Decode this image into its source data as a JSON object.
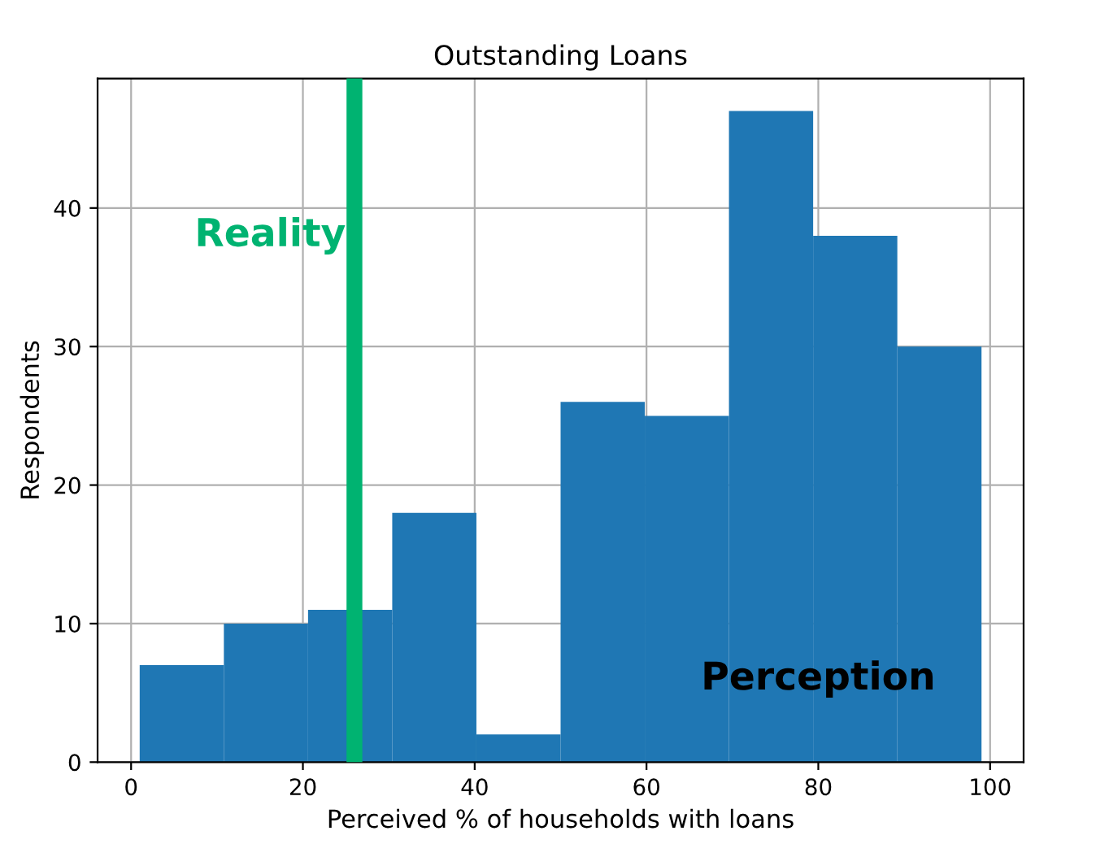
{
  "chart_data": {
    "type": "histogram",
    "title": "Outstanding Loans",
    "xlabel": "Perceived % of households with loans",
    "ylabel": "Respondents",
    "bins": [
      1,
      10.8,
      20.6,
      30.4,
      40.2,
      50,
      59.8,
      69.6,
      79.4,
      89.2,
      99
    ],
    "values": [
      7,
      10,
      11,
      18,
      2,
      26,
      25,
      47,
      38,
      30
    ],
    "color": "#1f77b4",
    "xlim": [
      -3.9,
      103.9
    ],
    "xticks": [
      0,
      20,
      40,
      60,
      80,
      100
    ],
    "ylim": [
      0,
      49.35
    ],
    "yticks": [
      0,
      10,
      20,
      30,
      40
    ],
    "grid": true,
    "ref_lines": [
      {
        "axis": "x",
        "value": 26,
        "label": "Reality",
        "color": "#00b371"
      }
    ],
    "annotations": [
      {
        "text": "Perception",
        "x": 80,
        "y": 6
      }
    ]
  }
}
